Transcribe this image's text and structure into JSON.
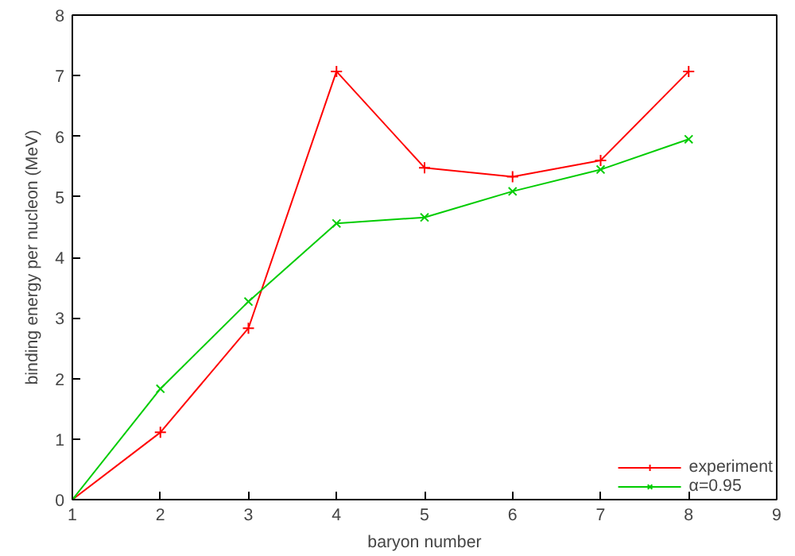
{
  "chart_data": {
    "type": "line",
    "xlabel": "baryon number",
    "ylabel": "binding energy per nucleon (MeV)",
    "x": [
      1,
      2,
      3,
      4,
      5,
      6,
      7,
      8
    ],
    "series": [
      {
        "name": "experiment",
        "color": "#ff0000",
        "marker": "cross",
        "values": [
          0,
          1.11,
          2.83,
          7.07,
          5.48,
          5.33,
          5.6,
          7.07
        ]
      },
      {
        "name": "α=0.95",
        "color": "#00cc00",
        "marker": "cross",
        "values": [
          0,
          1.83,
          3.27,
          4.56,
          4.66,
          5.09,
          5.45,
          5.95
        ]
      }
    ],
    "xlim": [
      1,
      9
    ],
    "xticks": [
      1,
      2,
      3,
      4,
      5,
      6,
      7,
      8,
      9
    ],
    "ylim": [
      0,
      8
    ],
    "yticks": [
      0,
      1,
      2,
      3,
      4,
      5,
      6,
      7,
      8
    ],
    "grid": false,
    "legend": "bottom right",
    "line_style": "solid"
  }
}
